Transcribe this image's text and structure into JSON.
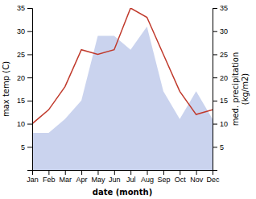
{
  "chart_data": {
    "type": "line",
    "categories": [
      "Jan",
      "Feb",
      "Mar",
      "Apr",
      "May",
      "Jun",
      "Jul",
      "Aug",
      "Sep",
      "Oct",
      "Nov",
      "Dec"
    ],
    "xlabel": "date (month)",
    "ylabel": "max temp (C)",
    "y2label": "med. precipitation\n(kg/m2)",
    "series": [
      {
        "type": "area",
        "axis": "y2",
        "color": "#b8c4e8",
        "values": [
          8,
          8,
          11,
          15,
          29,
          29,
          26,
          31,
          17,
          11,
          17,
          11
        ]
      },
      {
        "type": "line",
        "color": "#c0392b",
        "values": [
          10,
          13,
          18,
          26,
          25,
          26,
          35,
          33,
          25,
          17,
          12,
          13
        ]
      }
    ],
    "ylim": [
      0,
      35
    ],
    "yticks": [
      5,
      10,
      15,
      20,
      25,
      30,
      35
    ],
    "y2lim": [
      0,
      35
    ],
    "y2ticks": [
      5,
      10,
      15,
      20,
      25,
      30,
      35
    ],
    "grid": false
  }
}
